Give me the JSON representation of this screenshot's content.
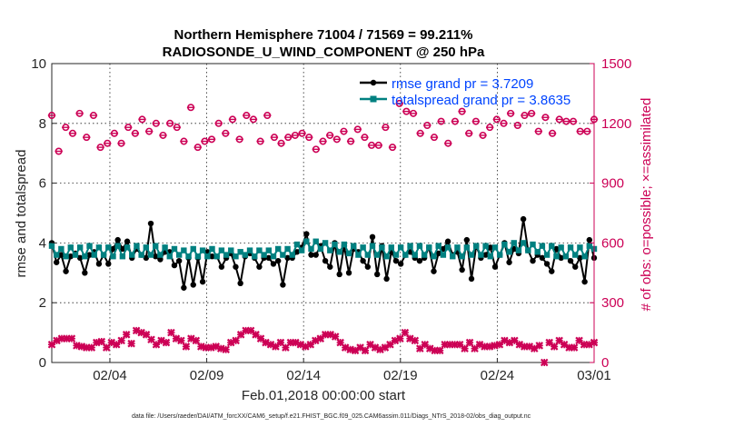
{
  "chart_data": {
    "type": "line",
    "title": "Northern Hemisphere 71004 / 71569 = 99.211%",
    "subtitle": "RADIOSONDE_U_WIND_COMPONENT @ 250 hPa",
    "xlabel": "Feb.01,2018 00:00:00 start",
    "ylabel_left": "rmse and totalspread",
    "ylabel_right": "# of obs: o=possible; ×=assimilated",
    "footnote": "data file: /Users/raeder/DAI/ATM_forcXX/CAM6_setup/f.e21.FHIST_BGC.f09_025.CAM6assim.011/Diags_NTrS_2018-02/obs_diag_output.nc",
    "xlim": [
      1,
      29
    ],
    "ylim_left": [
      0,
      10
    ],
    "ylim_right": [
      0,
      1500
    ],
    "x_ticks": [
      {
        "x": 4,
        "label": "02/04"
      },
      {
        "x": 9,
        "label": "02/09"
      },
      {
        "x": 14,
        "label": "02/14"
      },
      {
        "x": 19,
        "label": "02/19"
      },
      {
        "x": 24,
        "label": "02/24"
      },
      {
        "x": 29,
        "label": "03/01"
      }
    ],
    "left_ticks": [
      "0",
      "2",
      "4",
      "6",
      "8",
      "10"
    ],
    "right_ticks": [
      "0",
      "300",
      "600",
      "900",
      "1200",
      "1500"
    ],
    "x_start": 1.0,
    "x_step": 0.25,
    "colors": {
      "rmse": "#000000",
      "spread": "#008080",
      "obs": "#cc0055",
      "legend_text": "#0044ff",
      "axis": "#262626"
    },
    "series": [
      {
        "name": "rmse grand pr = 3.7209",
        "axis": "left",
        "marker": "circle",
        "values": [
          4.0,
          3.35,
          3.6,
          3.05,
          3.55,
          3.65,
          3.5,
          3.0,
          3.6,
          3.7,
          3.3,
          3.6,
          3.3,
          3.8,
          4.1,
          3.8,
          4.05,
          3.5,
          3.8,
          3.6,
          3.5,
          4.65,
          3.55,
          3.45,
          3.7,
          3.7,
          3.25,
          3.4,
          2.5,
          3.5,
          2.6,
          3.5,
          2.7,
          3.7,
          3.55,
          3.55,
          3.2,
          3.5,
          3.65,
          3.2,
          2.65,
          3.55,
          3.65,
          3.5,
          3.2,
          3.5,
          3.5,
          3.3,
          3.4,
          2.6,
          3.5,
          3.5,
          3.7,
          3.85,
          4.3,
          3.6,
          3.6,
          3.9,
          3.4,
          3.2,
          4.0,
          2.95,
          3.9,
          3.0,
          3.8,
          3.7,
          3.4,
          3.2,
          4.2,
          2.95,
          3.9,
          2.8,
          3.7,
          3.4,
          3.3,
          3.6,
          3.7,
          3.5,
          3.4,
          3.5,
          3.85,
          3.05,
          3.65,
          3.8,
          4.05,
          3.6,
          3.7,
          3.1,
          4.1,
          2.8,
          3.9,
          3.5,
          3.6,
          3.85,
          3.2,
          3.6,
          4.0,
          3.35,
          3.8,
          3.65,
          4.8,
          3.75,
          3.4,
          3.6,
          3.5,
          3.3,
          3.05,
          3.8,
          3.5,
          3.55,
          3.4,
          3.2,
          3.5,
          2.7,
          4.1,
          3.5
        ]
      },
      {
        "name": "totalspread grand pr = 3.8635",
        "axis": "left",
        "marker": "square",
        "values": [
          3.9,
          3.6,
          3.8,
          3.55,
          3.85,
          3.6,
          3.85,
          3.55,
          3.9,
          3.6,
          3.85,
          3.6,
          3.85,
          3.55,
          3.9,
          3.55,
          3.85,
          3.6,
          3.9,
          3.6,
          3.85,
          3.6,
          3.9,
          3.6,
          3.85,
          3.55,
          3.8,
          3.6,
          3.75,
          3.55,
          3.8,
          3.55,
          3.75,
          3.55,
          3.8,
          3.55,
          3.75,
          3.6,
          3.75,
          3.55,
          3.7,
          3.6,
          3.75,
          3.55,
          3.75,
          3.6,
          3.75,
          3.55,
          3.8,
          3.6,
          3.8,
          3.6,
          3.95,
          3.75,
          4.05,
          3.8,
          4.05,
          3.8,
          4.0,
          3.75,
          3.95,
          3.7,
          3.95,
          3.65,
          3.9,
          3.6,
          3.85,
          3.6,
          3.9,
          3.6,
          3.85,
          3.55,
          3.85,
          3.6,
          3.85,
          3.6,
          3.9,
          3.6,
          3.9,
          3.6,
          3.85,
          3.55,
          3.9,
          3.6,
          3.85,
          3.55,
          3.85,
          3.55,
          3.85,
          3.6,
          3.9,
          3.6,
          3.9,
          3.55,
          3.85,
          3.6,
          3.95,
          3.7,
          4.0,
          3.75,
          4.0,
          3.75,
          3.95,
          3.7,
          3.9,
          3.6,
          3.9,
          3.55,
          3.85,
          3.55,
          3.85,
          3.6,
          3.85,
          3.55,
          3.9,
          3.8
        ]
      },
      {
        "name": "possible",
        "axis": "right",
        "marker": "circle-open",
        "values": [
          1240,
          1060,
          1180,
          1150,
          1250,
          1130,
          1240,
          1080,
          1100,
          1150,
          1100,
          1180,
          1150,
          1220,
          1160,
          1200,
          1140,
          1200,
          1180,
          1110,
          1280,
          1080,
          1110,
          1120,
          1200,
          1150,
          1220,
          1120,
          1240,
          1220,
          1110,
          1240,
          1130,
          1100,
          1130,
          1140,
          1150,
          1130,
          1070,
          1110,
          1140,
          1120,
          1160,
          1110,
          1170,
          1130,
          1090,
          1090,
          1180,
          1080,
          1300,
          1260,
          1250,
          1150,
          1190,
          1130,
          1210,
          1100,
          1210,
          1260,
          1150,
          1210,
          1140,
          1180,
          1220,
          1200,
          1250,
          1190,
          1240,
          1250,
          1160,
          1230,
          1150,
          1220,
          1210,
          1210,
          1160,
          1160,
          1220
        ]
      },
      {
        "name": "assimilated",
        "axis": "right",
        "marker": "x",
        "values": [
          90,
          110,
          120,
          120,
          120,
          85,
          80,
          75,
          75,
          100,
          105,
          75,
          100,
          90,
          110,
          140,
          95,
          160,
          150,
          140,
          115,
          90,
          110,
          100,
          150,
          120,
          110,
          80,
          120,
          110,
          80,
          75,
          75,
          80,
          70,
          65,
          100,
          110,
          140,
          160,
          160,
          140,
          120,
          100,
          90,
          80,
          100,
          75,
          100,
          100,
          90,
          80,
          90,
          110,
          120,
          140,
          140,
          130,
          100,
          75,
          65,
          60,
          75,
          60,
          90,
          75,
          65,
          75,
          90,
          110,
          120,
          150,
          120,
          110,
          70,
          90,
          70,
          60,
          60,
          90,
          90,
          90,
          90,
          70,
          100,
          70,
          90,
          80,
          80,
          85,
          90,
          110,
          100,
          110,
          90,
          80,
          80,
          70,
          85,
          0,
          100,
          80,
          110,
          90,
          75,
          75,
          110,
          90,
          90,
          100
        ]
      }
    ]
  }
}
